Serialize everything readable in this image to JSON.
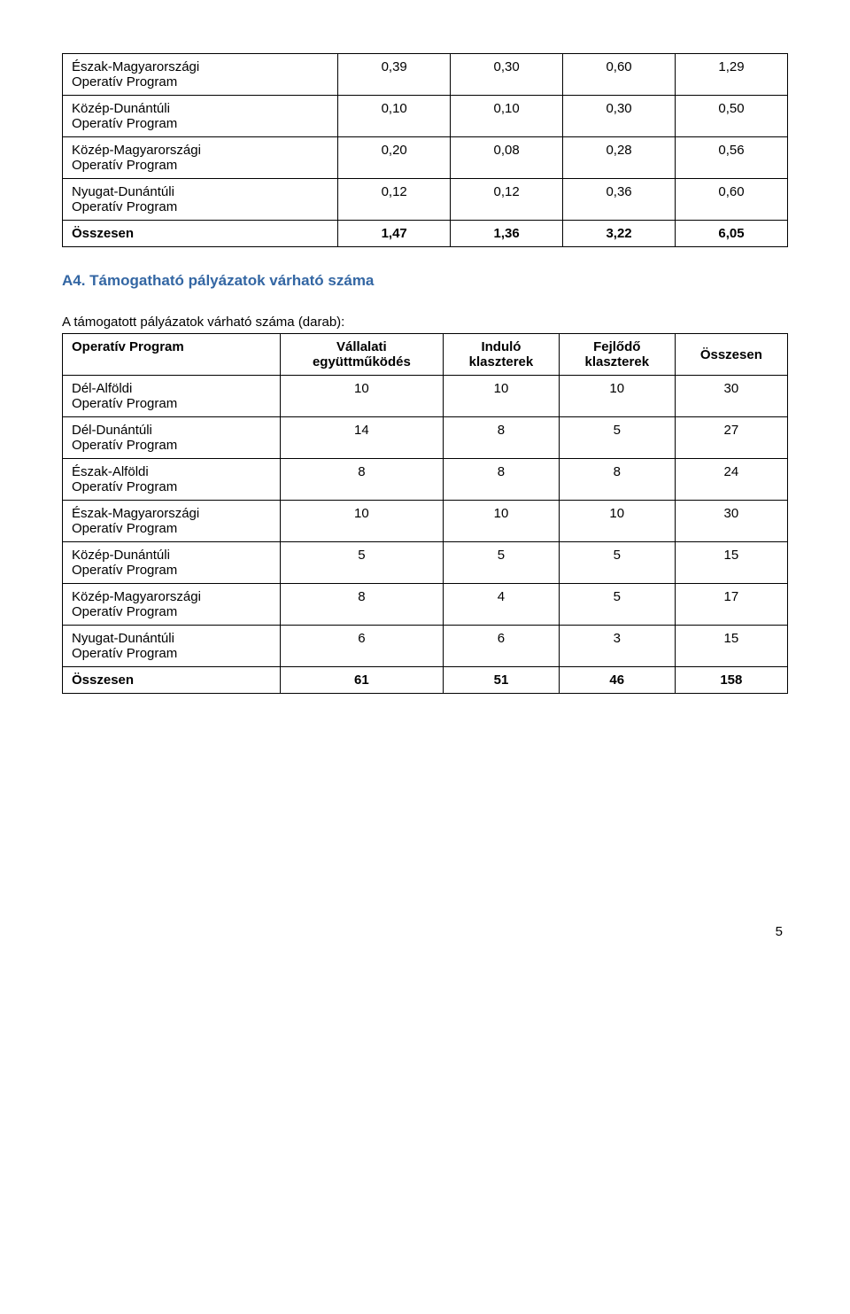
{
  "table1": {
    "rows": [
      {
        "label": "Észak-Magyarországi\nOperatív Program",
        "c1": "0,39",
        "c2": "0,30",
        "c3": "0,60",
        "c4": "1,29"
      },
      {
        "label": "Közép-Dunántúli\nOperatív Program",
        "c1": "0,10",
        "c2": "0,10",
        "c3": "0,30",
        "c4": "0,50"
      },
      {
        "label": "Közép-Magyarországi\nOperatív Program",
        "c1": "0,20",
        "c2": "0,08",
        "c3": "0,28",
        "c4": "0,56"
      },
      {
        "label": "Nyugat-Dunántúli\nOperatív Program",
        "c1": "0,12",
        "c2": "0,12",
        "c3": "0,36",
        "c4": "0,60"
      }
    ],
    "total": {
      "label": "Összesen",
      "c1": "1,47",
      "c2": "1,36",
      "c3": "3,22",
      "c4": "6,05"
    }
  },
  "heading": "A4. Támogatható pályázatok várható száma",
  "subtext": "A támogatott pályázatok várható száma (darab):",
  "table2": {
    "headers": {
      "h1": "Operatív Program",
      "h2": "Vállalati\negyüttműködés",
      "h3": "Induló\nklaszterek",
      "h4": "Fejlődő\nklaszterek",
      "h5": "Összesen"
    },
    "rows": [
      {
        "label": "Dél-Alföldi\nOperatív Program",
        "c1": "10",
        "c2": "10",
        "c3": "10",
        "c4": "30"
      },
      {
        "label": "Dél-Dunántúli\nOperatív Program",
        "c1": "14",
        "c2": "8",
        "c3": "5",
        "c4": "27"
      },
      {
        "label": "Észak-Alföldi\nOperatív Program",
        "c1": "8",
        "c2": "8",
        "c3": "8",
        "c4": "24"
      },
      {
        "label": "Észak-Magyarországi\nOperatív Program",
        "c1": "10",
        "c2": "10",
        "c3": "10",
        "c4": "30"
      },
      {
        "label": "Közép-Dunántúli\nOperatív Program",
        "c1": "5",
        "c2": "5",
        "c3": "5",
        "c4": "15"
      },
      {
        "label": "Közép-Magyarországi\nOperatív Program",
        "c1": "8",
        "c2": "4",
        "c3": "5",
        "c4": "17"
      },
      {
        "label": "Nyugat-Dunántúli\nOperatív Program",
        "c1": "6",
        "c2": "6",
        "c3": "3",
        "c4": "15"
      }
    ],
    "total": {
      "label": "Összesen",
      "c1": "61",
      "c2": "51",
      "c3": "46",
      "c4": "158"
    }
  },
  "page_number": "5"
}
